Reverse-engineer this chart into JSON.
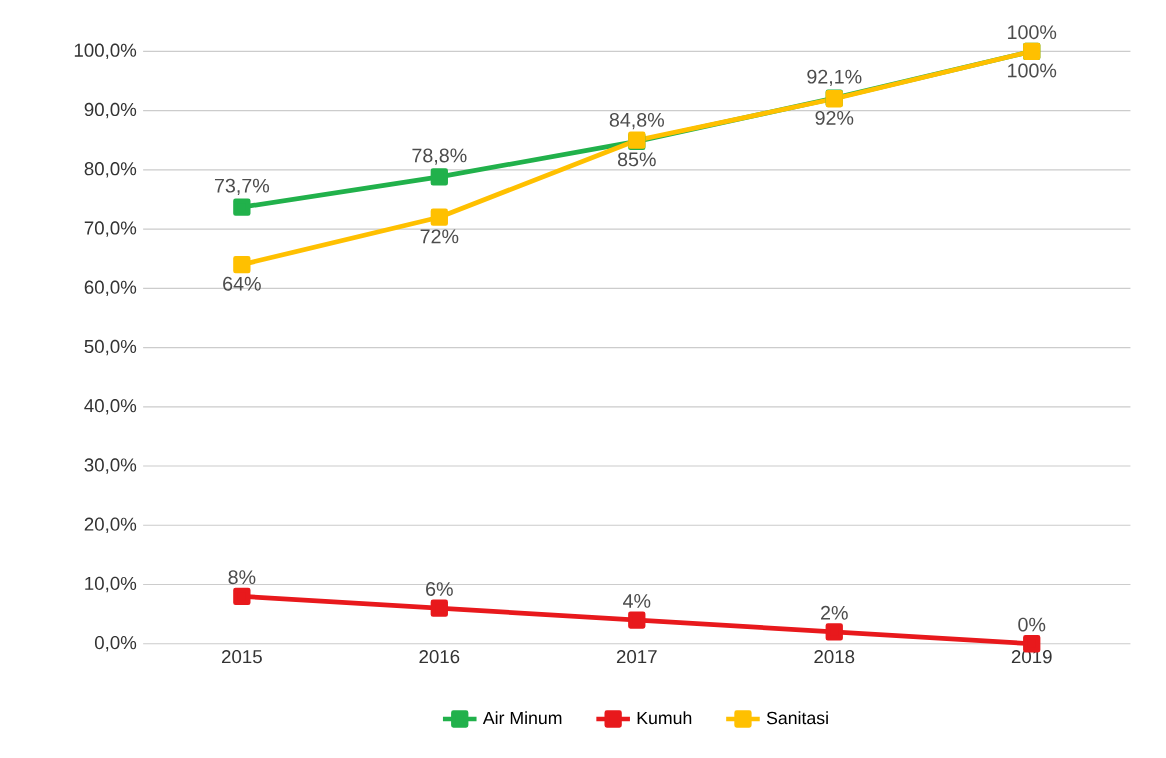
{
  "chart_data": {
    "type": "line",
    "categories": [
      "2015",
      "2016",
      "2017",
      "2018",
      "2019"
    ],
    "series": [
      {
        "name": "Air Minum",
        "color": "#21b14b",
        "values": [
          73.7,
          78.8,
          84.8,
          92.1,
          100
        ],
        "value_labels": [
          "73,7%",
          "78,8%",
          "84,8%",
          "92,1%",
          "100%"
        ]
      },
      {
        "name": "Kumuh",
        "color": "#e8191c",
        "values": [
          8,
          6,
          4,
          2,
          0
        ],
        "value_labels": [
          "8%",
          "6%",
          "4%",
          "2%",
          "0%"
        ]
      },
      {
        "name": "Sanitasi",
        "color": "#ffc000",
        "values": [
          64,
          72,
          85,
          92,
          100
        ],
        "value_labels": [
          "64%",
          "72%",
          "85%",
          "92%",
          "100%"
        ]
      }
    ],
    "ylim": [
      0,
      100
    ],
    "yticks": [
      {
        "value": 0,
        "label": "0,0%"
      },
      {
        "value": 10,
        "label": "10,0%"
      },
      {
        "value": 20,
        "label": "20,0%"
      },
      {
        "value": 30,
        "label": "30,0%"
      },
      {
        "value": 40,
        "label": "40,0%"
      },
      {
        "value": 50,
        "label": "50,0%"
      },
      {
        "value": 60,
        "label": "60,0%"
      },
      {
        "value": 70,
        "label": "70,0%"
      },
      {
        "value": 80,
        "label": "80,0%"
      },
      {
        "value": 90,
        "label": "90,0%"
      },
      {
        "value": 100,
        "label": "100,0%"
      }
    ],
    "grid": "y",
    "legend": "bottom",
    "marker": "square",
    "line_style": "solid"
  }
}
